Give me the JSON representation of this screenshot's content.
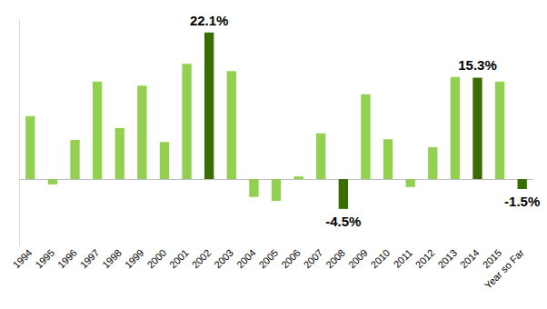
{
  "chart_data": {
    "type": "bar",
    "categories": [
      "1994",
      "1995",
      "1996",
      "1997",
      "1998",
      "1999",
      "2000",
      "2001",
      "2002",
      "2003",
      "2004",
      "2005",
      "2006",
      "2007",
      "2008",
      "2009",
      "2010",
      "2011",
      "2012",
      "2013",
      "2014",
      "2015",
      "Year so Far"
    ],
    "values": [
      9.5,
      -0.8,
      5.9,
      14.7,
      7.7,
      14.1,
      5.6,
      17.4,
      22.1,
      16.3,
      -2.7,
      -3.3,
      0.4,
      6.9,
      -4.5,
      12.8,
      6.0,
      -1.2,
      4.8,
      15.4,
      15.3,
      14.7,
      -1.5
    ],
    "value_labels": [
      null,
      null,
      null,
      null,
      null,
      null,
      null,
      null,
      "22.1%",
      null,
      null,
      null,
      null,
      null,
      "-4.5%",
      null,
      null,
      null,
      null,
      null,
      "15.3%",
      null,
      "-1.5%"
    ],
    "colors": [
      "#92d050",
      "#92d050",
      "#92d050",
      "#92d050",
      "#92d050",
      "#92d050",
      "#92d050",
      "#92d050",
      "#386e00",
      "#92d050",
      "#92d050",
      "#92d050",
      "#92d050",
      "#92d050",
      "#386e00",
      "#92d050",
      "#92d050",
      "#92d050",
      "#92d050",
      "#92d050",
      "#386e00",
      "#92d050",
      "#386e00"
    ],
    "ylim": [
      -10,
      24
    ],
    "yticks": [
      0
    ],
    "grid": true,
    "tick_labels": "x",
    "data_labels": true
  }
}
